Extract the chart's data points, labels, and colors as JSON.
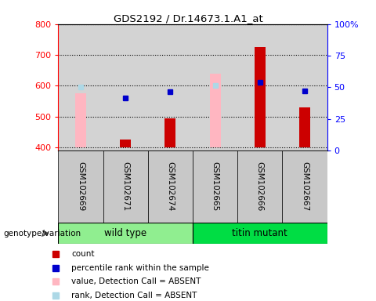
{
  "title": "GDS2192 / Dr.14673.1.A1_at",
  "samples": [
    "GSM102669",
    "GSM102671",
    "GSM102674",
    "GSM102665",
    "GSM102666",
    "GSM102667"
  ],
  "count_values": [
    null,
    425,
    493,
    null,
    725,
    530
  ],
  "count_base": 400,
  "rank_values": [
    null,
    560,
    580,
    null,
    612,
    583
  ],
  "value_absent": [
    575,
    null,
    null,
    640,
    null,
    null
  ],
  "rank_absent": [
    595,
    null,
    null,
    600,
    null,
    null
  ],
  "ylim_left": [
    390,
    800
  ],
  "ylim_right": [
    0,
    100
  ],
  "yticks_left": [
    400,
    500,
    600,
    700,
    800
  ],
  "yticks_right": [
    0,
    25,
    50,
    75,
    100
  ],
  "left_tick_labels": [
    "400",
    "500",
    "600",
    "700",
    "800"
  ],
  "right_tick_labels": [
    "0",
    "25",
    "50",
    "75",
    "100%"
  ],
  "bar_color": "#CC0000",
  "rank_color": "#0000CC",
  "value_absent_color": "#FFB6C1",
  "rank_absent_color": "#ADD8E6",
  "plot_bg": "#D3D3D3",
  "wt_color": "#90EE90",
  "tm_color": "#00DD44",
  "sample_box_color": "#C8C8C8",
  "legend_items": [
    {
      "color": "#CC0000",
      "label": "count"
    },
    {
      "color": "#0000CC",
      "label": "percentile rank within the sample"
    },
    {
      "color": "#FFB6C1",
      "label": "value, Detection Call = ABSENT"
    },
    {
      "color": "#ADD8E6",
      "label": "rank, Detection Call = ABSENT"
    }
  ]
}
